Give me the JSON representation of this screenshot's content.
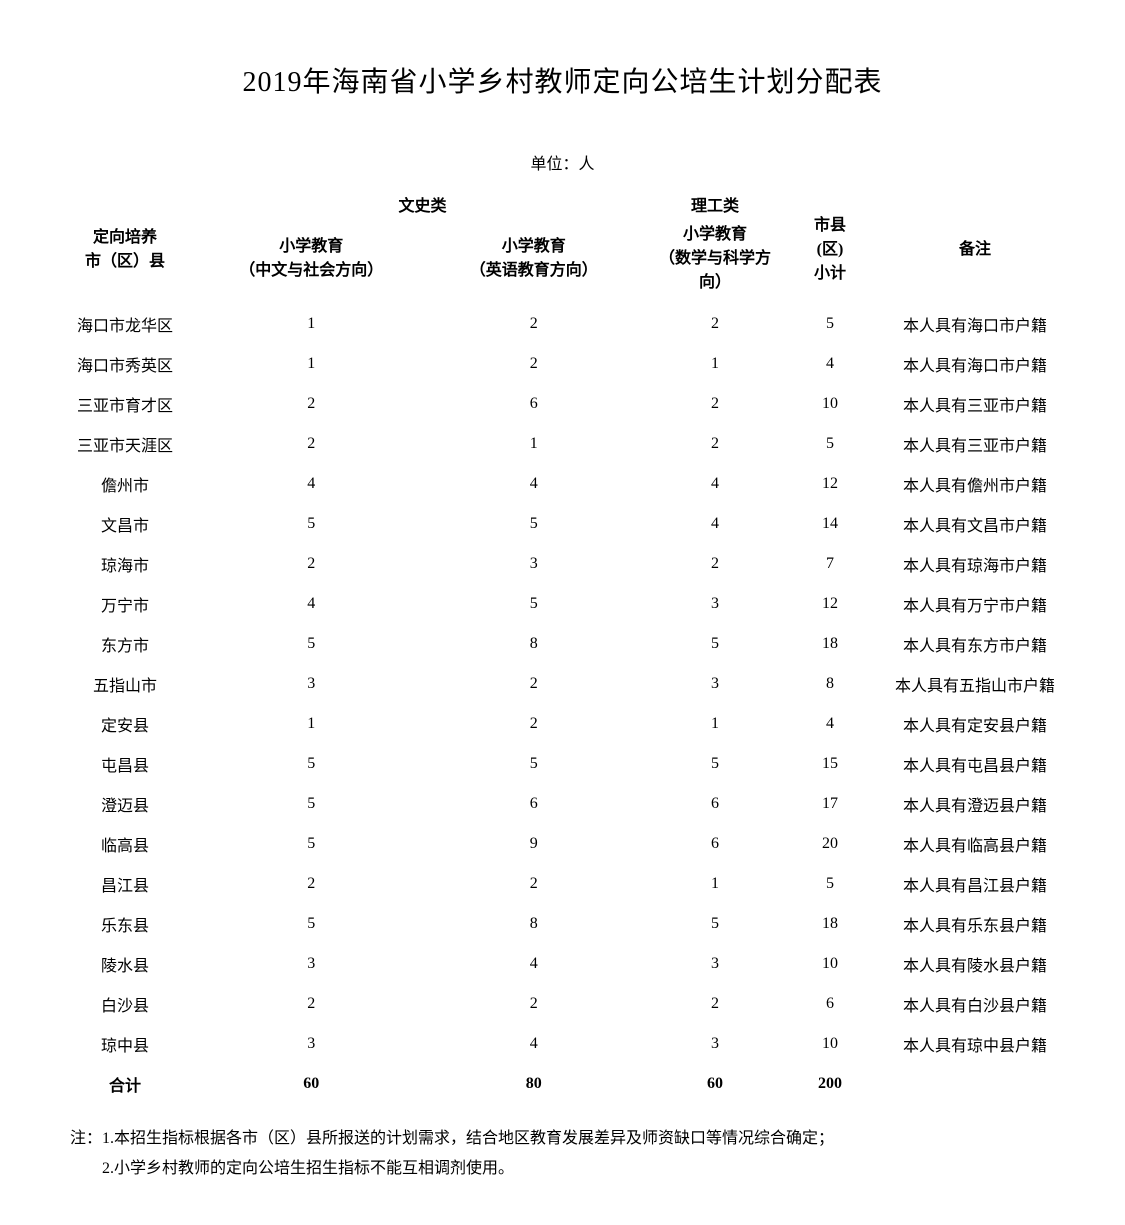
{
  "title": "2019年海南省小学乡村教师定向公培生计划分配表",
  "unit_label": "单位：人",
  "headers": {
    "region": "定向培养\n市（区）县",
    "liberal_arts": "文史类",
    "science": "理工类",
    "subtotal": "市县\n(区)\n小计",
    "note": "备注",
    "sub_chinese": "小学教育\n（中文与社会方向）",
    "sub_english": "小学教育\n（英语教育方向）",
    "sub_math": "小学教育\n（数学与科学方向）"
  },
  "rows": [
    {
      "region": "海口市龙华区",
      "chinese": "1",
      "english": "2",
      "math": "2",
      "subtotal": "5",
      "note": "本人具有海口市户籍"
    },
    {
      "region": "海口市秀英区",
      "chinese": "1",
      "english": "2",
      "math": "1",
      "subtotal": "4",
      "note": "本人具有海口市户籍"
    },
    {
      "region": "三亚市育才区",
      "chinese": "2",
      "english": "6",
      "math": "2",
      "subtotal": "10",
      "note": "本人具有三亚市户籍"
    },
    {
      "region": "三亚市天涯区",
      "chinese": "2",
      "english": "1",
      "math": "2",
      "subtotal": "5",
      "note": "本人具有三亚市户籍"
    },
    {
      "region": "儋州市",
      "chinese": "4",
      "english": "4",
      "math": "4",
      "subtotal": "12",
      "note": "本人具有儋州市户籍"
    },
    {
      "region": "文昌市",
      "chinese": "5",
      "english": "5",
      "math": "4",
      "subtotal": "14",
      "note": "本人具有文昌市户籍"
    },
    {
      "region": "琼海市",
      "chinese": "2",
      "english": "3",
      "math": "2",
      "subtotal": "7",
      "note": "本人具有琼海市户籍"
    },
    {
      "region": "万宁市",
      "chinese": "4",
      "english": "5",
      "math": "3",
      "subtotal": "12",
      "note": "本人具有万宁市户籍"
    },
    {
      "region": "东方市",
      "chinese": "5",
      "english": "8",
      "math": "5",
      "subtotal": "18",
      "note": "本人具有东方市户籍"
    },
    {
      "region": "五指山市",
      "chinese": "3",
      "english": "2",
      "math": "3",
      "subtotal": "8",
      "note": "本人具有五指山市户籍"
    },
    {
      "region": "定安县",
      "chinese": "1",
      "english": "2",
      "math": "1",
      "subtotal": "4",
      "note": "本人具有定安县户籍"
    },
    {
      "region": "屯昌县",
      "chinese": "5",
      "english": "5",
      "math": "5",
      "subtotal": "15",
      "note": "本人具有屯昌县户籍"
    },
    {
      "region": "澄迈县",
      "chinese": "5",
      "english": "6",
      "math": "6",
      "subtotal": "17",
      "note": "本人具有澄迈县户籍"
    },
    {
      "region": "临高县",
      "chinese": "5",
      "english": "9",
      "math": "6",
      "subtotal": "20",
      "note": "本人具有临高县户籍"
    },
    {
      "region": "昌江县",
      "chinese": "2",
      "english": "2",
      "math": "1",
      "subtotal": "5",
      "note": "本人具有昌江县户籍"
    },
    {
      "region": "乐东县",
      "chinese": "5",
      "english": "8",
      "math": "5",
      "subtotal": "18",
      "note": "本人具有乐东县户籍"
    },
    {
      "region": "陵水县",
      "chinese": "3",
      "english": "4",
      "math": "3",
      "subtotal": "10",
      "note": "本人具有陵水县户籍"
    },
    {
      "region": "白沙县",
      "chinese": "2",
      "english": "2",
      "math": "2",
      "subtotal": "6",
      "note": "本人具有白沙县户籍"
    },
    {
      "region": "琼中县",
      "chinese": "3",
      "english": "4",
      "math": "3",
      "subtotal": "10",
      "note": "本人具有琼中县户籍"
    }
  ],
  "total": {
    "region": "合计",
    "chinese": "60",
    "english": "80",
    "math": "60",
    "subtotal": "200",
    "note": ""
  },
  "notes": {
    "line1": "注：1.本招生指标根据各市（区）县所报送的计划需求，结合地区教育发展差异及师资缺口等情况综合确定；",
    "line2": "2.小学乡村教师的定向公培生招生指标不能互相调剂使用。"
  },
  "styling": {
    "background_color": "#ffffff",
    "text_color": "#000000",
    "title_fontsize": 28,
    "body_fontsize": 16,
    "font_family": "SimSun",
    "col_widths": {
      "region": 150,
      "num": 140,
      "subtotal": 90,
      "note": 200
    },
    "row_padding_v": 8
  }
}
